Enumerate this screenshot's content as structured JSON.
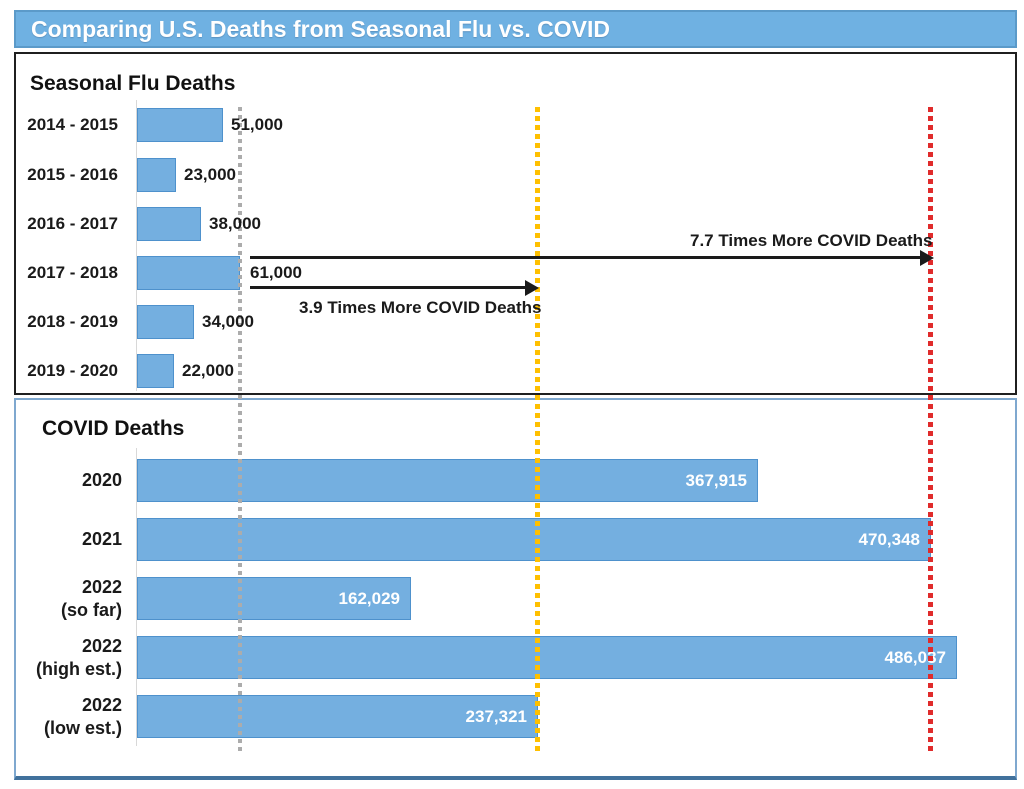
{
  "header": {
    "title": "Comparing U.S. Deaths from Seasonal Flu vs. COVID"
  },
  "chart_data": [
    {
      "type": "bar",
      "orientation": "horizontal",
      "title": "Seasonal Flu Deaths",
      "categories": [
        "2014 - 2015",
        "2015 - 2016",
        "2016 - 2017",
        "2017 - 2018",
        "2018 - 2019",
        "2019 - 2020"
      ],
      "values": [
        51000,
        23000,
        38000,
        61000,
        34000,
        22000
      ],
      "value_labels": [
        "51,000",
        "23,000",
        "38,000",
        "61,000",
        "34,000",
        "22,000"
      ],
      "value_label_position": "outside-right",
      "xlim": [
        0,
        520000
      ],
      "bar_color": "#74AFE0",
      "bar_border_color": "#4E91CC"
    },
    {
      "type": "bar",
      "orientation": "horizontal",
      "title": "COVID Deaths",
      "categories": [
        "2020",
        "2021",
        "2022\n(so far)",
        "2022\n(high est.)",
        "2022\n(low est.)"
      ],
      "values": [
        367915,
        470348,
        162029,
        486037,
        237321
      ],
      "value_labels": [
        "367,915",
        "470,348",
        "162,029",
        "486,037",
        "237,321"
      ],
      "value_label_position": "inside-right",
      "xlim": [
        0,
        520000
      ],
      "bar_color": "#74AFE0",
      "bar_border_color": "#4E91CC"
    }
  ],
  "annotations": {
    "comparison_77": "7.7 Times More COVID Deaths",
    "comparison_39": "3.9 Times More COVID Deaths",
    "reference_lines": [
      {
        "name": "flu-2017-2018-level",
        "value": 61000,
        "color": "#ACACAC",
        "dot": 4
      },
      {
        "name": "covid-3-9x-level",
        "value": 237321,
        "color": "#FFC000",
        "dot": 5
      },
      {
        "name": "covid-7-7x-level",
        "value": 470348,
        "color": "#E02B2B",
        "dot": 5
      }
    ]
  },
  "colors": {
    "header_bg": "#6FB1E2",
    "header_border": "#5B9AC9",
    "bar_fill": "#74AFE0",
    "flu_panel_border": "#1F1F1F",
    "covid_panel_border": "#41719C"
  }
}
